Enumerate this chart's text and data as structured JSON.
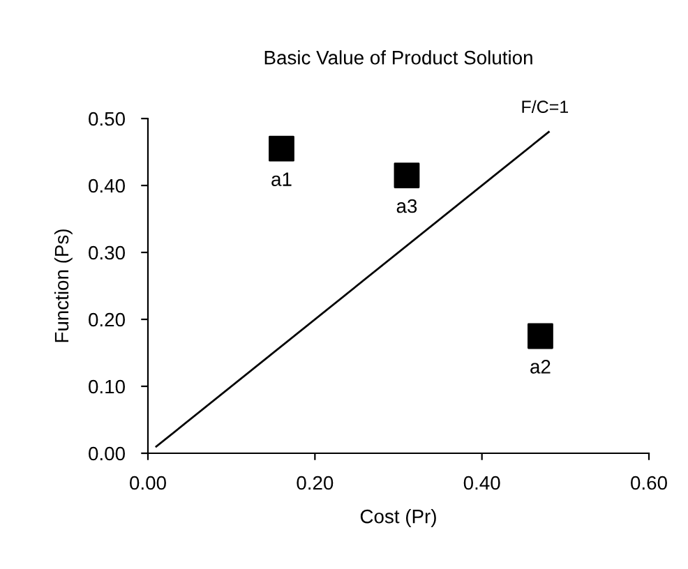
{
  "chart_data": {
    "type": "scatter",
    "title": "Basic Value of Product Solution",
    "xlabel": "Cost (Pr)",
    "ylabel": "Function (Ps)",
    "x": [
      0.16,
      0.47,
      0.31
    ],
    "series": [
      {
        "color": "#000000",
        "marker": "square",
        "values": [
          0.455,
          0.175,
          0.415
        ]
      },
      {
        "type": "line",
        "name": "F/C=1",
        "color": "#000000",
        "marker": "none",
        "line_style": "solid",
        "x": [
          0.01,
          0.48
        ],
        "values": [
          0.01,
          0.48
        ]
      }
    ],
    "annotations": [
      {
        "text": "a1",
        "x": 0.16,
        "y": 0.455
      },
      {
        "text": "a2",
        "x": 0.47,
        "y": 0.175
      },
      {
        "text": "a3",
        "x": 0.31,
        "y": 0.415
      }
    ],
    "xlim": [
      0,
      0.6
    ],
    "ylim": [
      0,
      0.5
    ],
    "xticks": [
      {
        "value": 0,
        "label": "0.00"
      },
      {
        "value": 0.2,
        "label": "0.20"
      },
      {
        "value": 0.4,
        "label": "0.40"
      },
      {
        "value": 0.6,
        "label": "0.60"
      }
    ],
    "yticks": [
      {
        "value": 0,
        "label": "0.00"
      },
      {
        "value": 0.1,
        "label": "0.10"
      },
      {
        "value": 0.2,
        "label": "0.20"
      },
      {
        "value": 0.3,
        "label": "0.30"
      },
      {
        "value": 0.4,
        "label": "0.40"
      },
      {
        "value": 0.5,
        "label": "0.50"
      }
    ],
    "grid": false,
    "legend": false
  }
}
